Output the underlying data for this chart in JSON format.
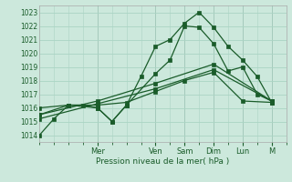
{
  "background_color": "#cce8dc",
  "grid_color": "#aad4c4",
  "line_color": "#1a5c2a",
  "xlabel": "Pression niveau de la mer( hPa )",
  "ylim": [
    1013.5,
    1023.5
  ],
  "yticks": [
    1014,
    1015,
    1016,
    1017,
    1018,
    1019,
    1020,
    1021,
    1022,
    1023
  ],
  "xlim": [
    0,
    8.5
  ],
  "day_labels": [
    "Mer",
    "Ven",
    "Sam",
    "Dim",
    "Lun",
    "M"
  ],
  "day_positions": [
    2.0,
    4.0,
    5.0,
    6.0,
    7.0,
    8.0
  ],
  "minor_xtick_interval": 0.5,
  "series1_x": [
    0,
    0.5,
    1.0,
    1.5,
    2.0,
    2.5,
    3.0,
    3.5,
    4.0,
    4.5,
    5.0,
    5.5,
    6.0,
    6.5,
    7.0,
    7.5,
    8.0
  ],
  "series1_y": [
    1014.0,
    1015.2,
    1016.2,
    1016.2,
    1016.0,
    1015.0,
    1016.2,
    1018.3,
    1020.5,
    1021.0,
    1022.2,
    1023.0,
    1021.9,
    1020.5,
    1019.5,
    1018.3,
    1016.4
  ],
  "series2_x": [
    0,
    1.0,
    2.0,
    2.5,
    3.0,
    4.0,
    4.5,
    5.0,
    5.5,
    6.0,
    6.5,
    7.0,
    7.5,
    8.0
  ],
  "series2_y": [
    1016.0,
    1016.2,
    1016.0,
    1015.0,
    1016.2,
    1018.5,
    1019.5,
    1022.0,
    1021.9,
    1020.7,
    1018.7,
    1019.0,
    1017.0,
    1016.5
  ],
  "series3_x": [
    0,
    1.0,
    2.0,
    3.0,
    4.0,
    5.0,
    6.0,
    7.0,
    8.0
  ],
  "series3_y": [
    1015.5,
    1016.2,
    1016.2,
    1016.4,
    1017.2,
    1018.0,
    1018.6,
    1016.5,
    1016.4
  ],
  "series4_x": [
    0,
    2.0,
    4.0,
    6.0,
    8.0
  ],
  "series4_y": [
    1015.2,
    1016.3,
    1017.4,
    1018.8,
    1016.5
  ],
  "series5_x": [
    0,
    2.0,
    4.0,
    6.0,
    8.0
  ],
  "series5_y": [
    1015.5,
    1016.5,
    1017.8,
    1019.2,
    1016.5
  ]
}
